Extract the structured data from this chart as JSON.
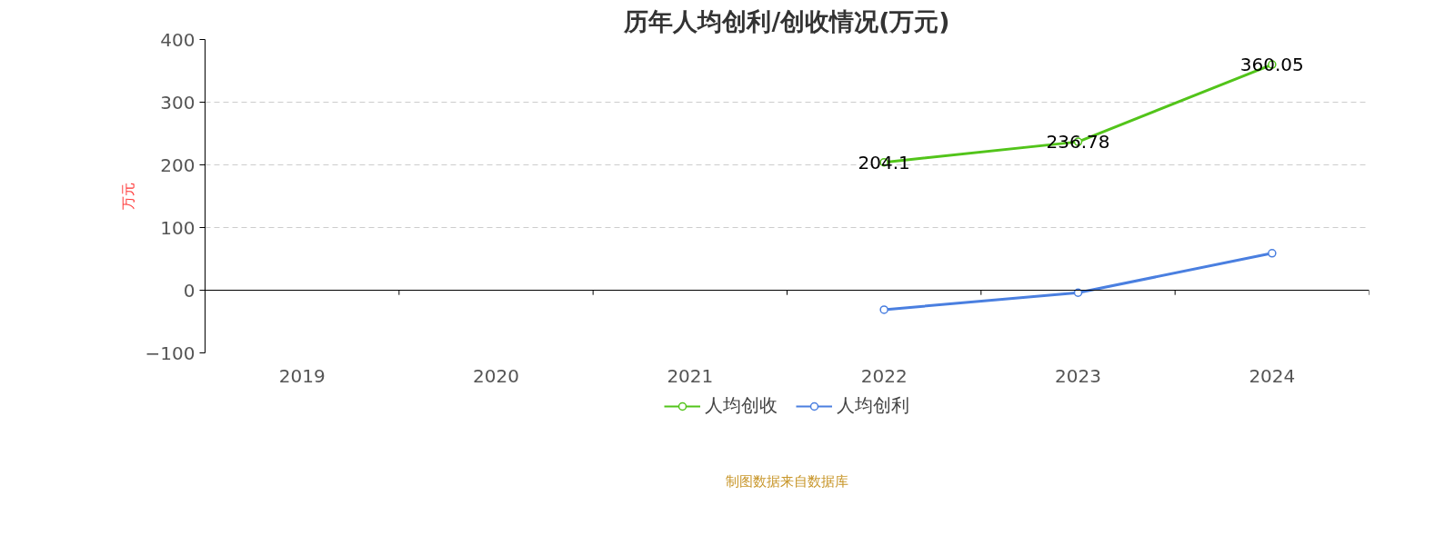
{
  "chart_data": {
    "type": "line",
    "title": "历年人均创利/创收情况(万元)",
    "ylabel": "万元",
    "categories": [
      "2019",
      "2020",
      "2021",
      "2022",
      "2023",
      "2024"
    ],
    "series": [
      {
        "name": "人均创收",
        "color": "#52c41a",
        "values": [
          null,
          null,
          null,
          204.1,
          236.78,
          360.05
        ],
        "value_labels": [
          null,
          null,
          null,
          "204.1",
          "236.78",
          "360.05"
        ]
      },
      {
        "name": "人均创利",
        "color": "#4a7fe0",
        "values": [
          null,
          null,
          null,
          -31,
          -4,
          59
        ]
      }
    ],
    "ylim": [
      -100,
      400
    ],
    "yticks": [
      -100,
      0,
      100,
      200,
      300,
      400
    ],
    "grid": "y",
    "legend": "bottom",
    "marker": "circle",
    "line_style": "solid",
    "annotations": [
      "制图数据来自数据库"
    ]
  }
}
